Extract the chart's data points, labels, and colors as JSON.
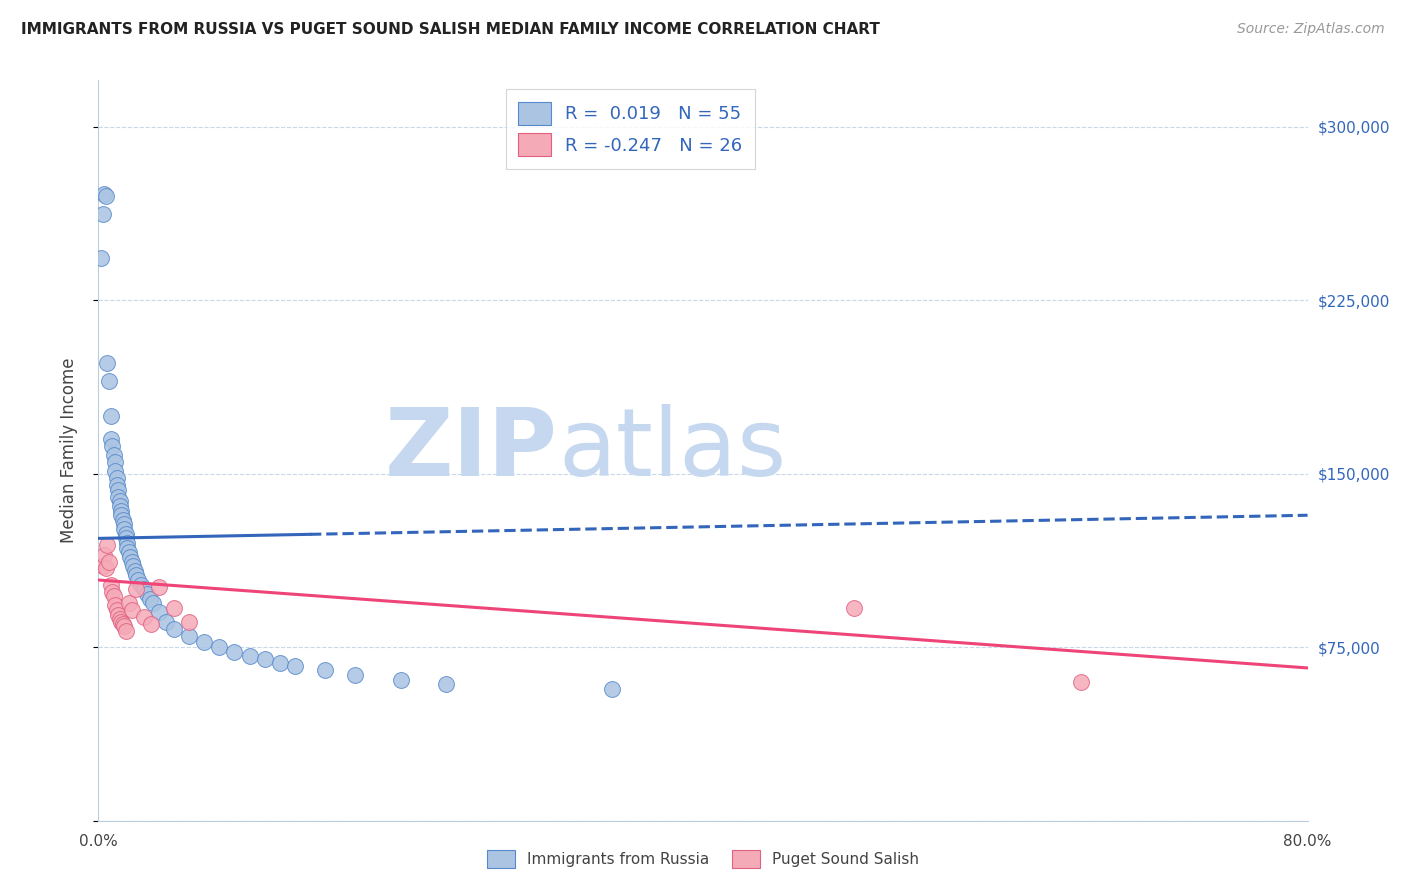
{
  "title": "IMMIGRANTS FROM RUSSIA VS PUGET SOUND SALISH MEDIAN FAMILY INCOME CORRELATION CHART",
  "source": "Source: ZipAtlas.com",
  "ylabel": "Median Family Income",
  "legend_label1": "Immigrants from Russia",
  "legend_label2": "Puget Sound Salish",
  "r1": 0.019,
  "n1": 55,
  "r2": -0.247,
  "n2": 26,
  "blue_color": "#aac4e2",
  "pink_color": "#f5aab8",
  "blue_edge_color": "#5588cc",
  "pink_edge_color": "#e06080",
  "blue_line_color": "#3366bb",
  "pink_line_color": "#ee4477",
  "watermark_zip_color": "#c5d8ef",
  "watermark_atlas_color": "#c5d8ef",
  "xlim": [
    0,
    0.8
  ],
  "ylim": [
    0,
    320000
  ],
  "blue_scatter_x": [
    0.002,
    0.003,
    0.004,
    0.005,
    0.006,
    0.007,
    0.008,
    0.008,
    0.009,
    0.01,
    0.011,
    0.011,
    0.012,
    0.012,
    0.013,
    0.013,
    0.014,
    0.014,
    0.015,
    0.015,
    0.016,
    0.017,
    0.017,
    0.018,
    0.018,
    0.019,
    0.019,
    0.02,
    0.021,
    0.022,
    0.023,
    0.024,
    0.025,
    0.026,
    0.028,
    0.03,
    0.032,
    0.034,
    0.036,
    0.04,
    0.045,
    0.05,
    0.06,
    0.07,
    0.08,
    0.09,
    0.1,
    0.11,
    0.12,
    0.13,
    0.15,
    0.17,
    0.2,
    0.23,
    0.34
  ],
  "blue_scatter_y": [
    243000,
    262000,
    271000,
    270000,
    198000,
    190000,
    175000,
    165000,
    162000,
    158000,
    155000,
    151000,
    148000,
    145000,
    143000,
    140000,
    138000,
    136000,
    134000,
    132000,
    130000,
    128000,
    126000,
    124000,
    122000,
    120000,
    118000,
    116000,
    114000,
    112000,
    110000,
    108000,
    106000,
    104000,
    102000,
    100000,
    98000,
    96000,
    94000,
    90000,
    86000,
    83000,
    80000,
    77000,
    75000,
    73000,
    71000,
    70000,
    68000,
    67000,
    65000,
    63000,
    61000,
    59000,
    57000
  ],
  "pink_scatter_x": [
    0.003,
    0.004,
    0.005,
    0.006,
    0.007,
    0.008,
    0.009,
    0.01,
    0.011,
    0.012,
    0.013,
    0.014,
    0.015,
    0.016,
    0.017,
    0.018,
    0.02,
    0.022,
    0.025,
    0.03,
    0.035,
    0.04,
    0.05,
    0.06,
    0.5,
    0.65
  ],
  "pink_scatter_y": [
    110000,
    115000,
    109000,
    119000,
    112000,
    102000,
    99000,
    97000,
    93000,
    91000,
    89000,
    87000,
    86000,
    85000,
    84000,
    82000,
    94000,
    91000,
    100000,
    88000,
    85000,
    101000,
    92000,
    86000,
    92000,
    60000
  ],
  "blue_line_x0": 0.0,
  "blue_line_x_split": 0.14,
  "blue_line_x1": 0.8,
  "blue_line_y0": 122000,
  "blue_line_y1": 132000,
  "pink_line_x0": 0.0,
  "pink_line_x1": 0.8,
  "pink_line_y0": 104000,
  "pink_line_y1": 66000
}
